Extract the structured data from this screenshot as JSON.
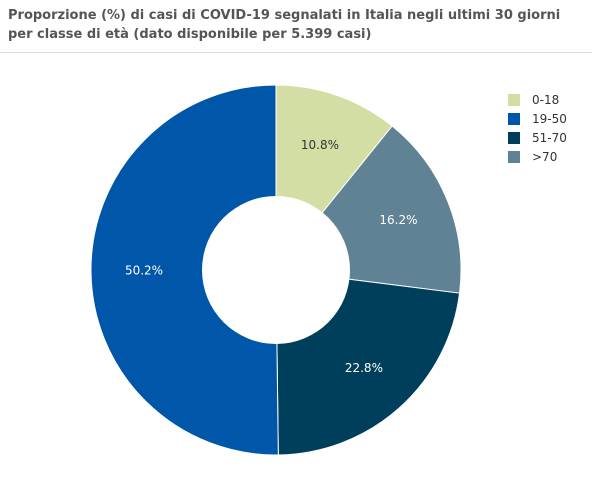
{
  "chart_data": {
    "type": "pie",
    "title": "Proporzione (%) di casi di COVID-19 segnalati in Italia negli ultimi 30 giorni per classe di età (dato disponibile per 5.399 casi)",
    "categories": [
      "0-18",
      "19-50",
      "51-70",
      ">70"
    ],
    "values": [
      10.8,
      50.2,
      22.8,
      16.2
    ],
    "value_labels": [
      "10.8%",
      "50.2%",
      "22.8%",
      "16.2%"
    ],
    "colors": [
      "#d3dea4",
      "#0056a8",
      "#003f5c",
      "#5f8294"
    ],
    "label_colors": [
      "#333333",
      "#ffffff",
      "#ffffff",
      "#ffffff"
    ],
    "drawing_order": [
      0,
      3,
      2,
      1
    ],
    "donut": true,
    "legend_position": "top-right"
  }
}
